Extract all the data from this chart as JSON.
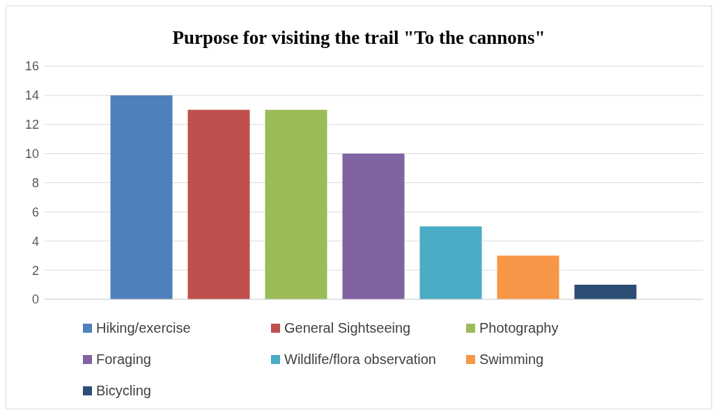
{
  "chart_data": {
    "type": "bar",
    "title": "Purpose for visiting the trail \"To the cannons\"",
    "categories": [
      null
    ],
    "series": [
      {
        "name": "Hiking/exercise",
        "color": "#4f81bd",
        "values": [
          14
        ]
      },
      {
        "name": "General Sightseeing",
        "color": "#c0504d",
        "values": [
          13
        ]
      },
      {
        "name": "Photography",
        "color": "#9bbb59",
        "values": [
          13
        ]
      },
      {
        "name": "Foraging",
        "color": "#8064a2",
        "values": [
          10
        ]
      },
      {
        "name": "Wildlife/flora observation",
        "color": "#4bacc6",
        "values": [
          5
        ]
      },
      {
        "name": "Swimming",
        "color": "#f79646",
        "values": [
          3
        ]
      },
      {
        "name": "Bicycling",
        "color": "#2c4d75",
        "values": [
          1
        ]
      }
    ],
    "ylim": [
      0,
      16
    ],
    "yticks": [
      0,
      2,
      4,
      6,
      8,
      10,
      12,
      14,
      16
    ],
    "grid": "y",
    "legend": "bottom"
  }
}
